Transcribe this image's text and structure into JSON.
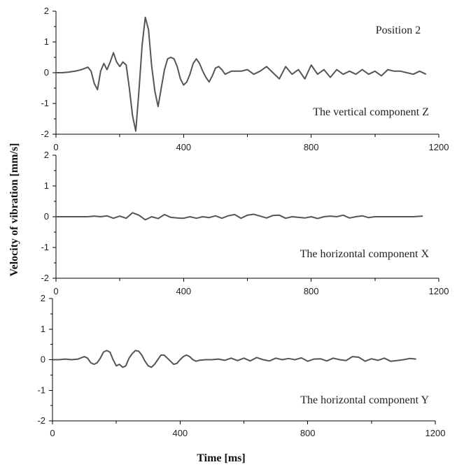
{
  "chart_data": {
    "type": "line",
    "xlabel": "Time [ms]",
    "ylabel": "Velocity of vibration [mm/s]",
    "subplots": [
      {
        "annotation": "Position 2",
        "component_label": "The vertical component Z",
        "xlim": [
          0,
          1200
        ],
        "ylim": [
          -2,
          2
        ],
        "xticks": [
          "0",
          "400",
          "800",
          "1200"
        ],
        "yticks": [
          "2",
          "1",
          "0",
          "-1",
          "-2"
        ],
        "color": "#555555",
        "x": [
          0,
          20,
          40,
          60,
          80,
          100,
          110,
          120,
          130,
          140,
          150,
          160,
          170,
          180,
          190,
          200,
          210,
          220,
          230,
          240,
          250,
          260,
          270,
          280,
          290,
          300,
          310,
          320,
          330,
          340,
          350,
          360,
          370,
          380,
          390,
          400,
          410,
          420,
          430,
          440,
          450,
          460,
          470,
          480,
          490,
          500,
          510,
          520,
          530,
          540,
          550,
          560,
          580,
          600,
          620,
          640,
          660,
          680,
          700,
          720,
          740,
          760,
          780,
          800,
          820,
          840,
          860,
          880,
          900,
          920,
          940,
          960,
          980,
          1000,
          1020,
          1040,
          1060,
          1080,
          1100,
          1120,
          1140,
          1160
        ],
        "y": [
          0,
          0,
          0.02,
          0.05,
          0.1,
          0.18,
          0.05,
          -0.35,
          -0.55,
          0.05,
          0.3,
          0.1,
          0.35,
          0.65,
          0.35,
          0.2,
          0.35,
          0.25,
          -0.5,
          -1.4,
          -1.9,
          -0.6,
          0.9,
          1.8,
          1.4,
          0.2,
          -0.6,
          -1.1,
          -0.5,
          0.1,
          0.45,
          0.5,
          0.45,
          0.2,
          -0.2,
          -0.4,
          -0.3,
          -0.05,
          0.3,
          0.45,
          0.3,
          0.05,
          -0.15,
          -0.3,
          -0.1,
          0.15,
          0.2,
          0.1,
          -0.05,
          0,
          0.05,
          0.05,
          0.05,
          0.1,
          -0.05,
          0.05,
          0.2,
          0,
          -0.2,
          0.2,
          -0.05,
          0.1,
          -0.2,
          0.25,
          -0.05,
          0.1,
          -0.15,
          0.1,
          -0.05,
          0.05,
          -0.05,
          0.1,
          -0.05,
          0.05,
          -0.1,
          0.1,
          0.05,
          0.05,
          0,
          -0.05,
          0.05,
          -0.05
        ]
      },
      {
        "annotation": "",
        "component_label": "The horizontal component X",
        "xlim": [
          0,
          1200
        ],
        "ylim": [
          -2,
          2
        ],
        "xticks": [
          "0",
          "400",
          "800",
          "1200"
        ],
        "yticks": [
          "2",
          "1",
          "0",
          "-1",
          "-2"
        ],
        "color": "#555555",
        "x": [
          0,
          60,
          100,
          120,
          140,
          160,
          180,
          200,
          220,
          240,
          260,
          280,
          300,
          320,
          340,
          360,
          380,
          400,
          420,
          440,
          460,
          480,
          500,
          520,
          540,
          560,
          580,
          600,
          620,
          640,
          660,
          680,
          700,
          720,
          740,
          760,
          780,
          800,
          820,
          840,
          860,
          880,
          900,
          920,
          940,
          960,
          980,
          1000,
          1040,
          1080,
          1100,
          1120,
          1150
        ],
        "y": [
          0,
          0,
          0,
          0.02,
          0,
          0.03,
          -0.05,
          0.02,
          -0.05,
          0.13,
          0.05,
          -0.1,
          0,
          -0.06,
          0.07,
          -0.02,
          -0.04,
          -0.05,
          0,
          -0.05,
          0,
          -0.03,
          0.03,
          -0.05,
          0.03,
          0.07,
          -0.05,
          0.05,
          0.08,
          0.02,
          -0.04,
          0.04,
          0.05,
          -0.05,
          0,
          -0.02,
          -0.04,
          0,
          -0.06,
          0,
          0.02,
          0,
          0.05,
          -0.04,
          0,
          0.03,
          -0.03,
          0,
          0,
          0,
          0,
          0,
          0.02
        ]
      },
      {
        "annotation": "",
        "component_label": "The horizontal component Y",
        "xlim": [
          0,
          1200
        ],
        "ylim": [
          -2,
          2
        ],
        "xticks": [
          "0",
          "400",
          "800",
          "1200"
        ],
        "yticks": [
          "2",
          "1",
          "0",
          "-1",
          "-2"
        ],
        "color": "#555555",
        "x": [
          0,
          20,
          40,
          60,
          80,
          100,
          110,
          120,
          130,
          140,
          150,
          160,
          170,
          180,
          190,
          200,
          210,
          220,
          230,
          240,
          250,
          260,
          270,
          280,
          290,
          300,
          310,
          320,
          330,
          340,
          350,
          360,
          370,
          380,
          390,
          400,
          410,
          420,
          430,
          440,
          450,
          460,
          480,
          500,
          520,
          540,
          560,
          580,
          600,
          620,
          640,
          660,
          680,
          700,
          720,
          740,
          760,
          780,
          800,
          820,
          840,
          860,
          880,
          900,
          920,
          940,
          960,
          980,
          1000,
          1020,
          1040,
          1060,
          1080,
          1100,
          1120,
          1140
        ],
        "y": [
          0,
          0,
          0.02,
          0,
          0.02,
          0.1,
          0.05,
          -0.1,
          -0.15,
          -0.1,
          0.05,
          0.25,
          0.3,
          0.25,
          0,
          -0.2,
          -0.15,
          -0.25,
          -0.2,
          0.05,
          0.2,
          0.3,
          0.28,
          0.15,
          -0.05,
          -0.2,
          -0.25,
          -0.15,
          0,
          0.15,
          0.15,
          0.05,
          -0.05,
          -0.15,
          -0.12,
          0,
          0.1,
          0.15,
          0.1,
          0,
          -0.05,
          -0.02,
          0,
          0,
          0.02,
          -0.02,
          0.05,
          -0.03,
          0.05,
          -0.04,
          0.07,
          0,
          -0.04,
          0.05,
          0,
          0.04,
          0,
          0.06,
          -0.05,
          0.02,
          0.03,
          -0.04,
          0.05,
          0,
          -0.03,
          0.1,
          0.08,
          -0.05,
          0.03,
          -0.02,
          0.05,
          -0.05,
          -0.03,
          0,
          0.04,
          0.02
        ]
      }
    ]
  }
}
